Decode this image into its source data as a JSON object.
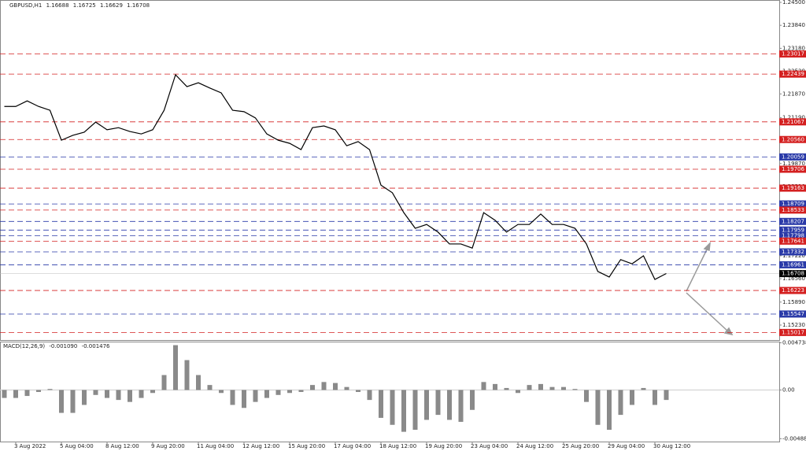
{
  "chart_data": [
    {
      "type": "line",
      "title": "GBPUSD,H1",
      "ohlc": [
        1.16688,
        1.16725,
        1.16629,
        1.16708
      ],
      "color": "#000000",
      "categories": [
        null,
        "3 Aug 2022",
        null,
        null,
        null,
        "5 Aug 04:00",
        null,
        null,
        null,
        "8 Aug 12:00",
        null,
        null,
        null,
        "9 Aug 20:00",
        null,
        null,
        null,
        "11 Aug 04:00",
        null,
        null,
        null,
        "12 Aug 12:00",
        null,
        null,
        null,
        "15 Aug 20:00",
        null,
        null,
        null,
        "17 Aug 04:00",
        null,
        null,
        null,
        "18 Aug 12:00",
        null,
        null,
        null,
        "19 Aug 20:00",
        null,
        null,
        null,
        "23 Aug 04:00",
        null,
        null,
        null,
        "24 Aug 12:00",
        null,
        null,
        null,
        "25 Aug 20:00",
        null,
        null,
        null,
        "29 Aug 04:00",
        null,
        null,
        null,
        "30 Aug 12:00",
        null
      ],
      "values": [
        1.2151,
        1.2151,
        1.2167,
        1.2151,
        1.214,
        1.2054,
        1.2068,
        1.2077,
        1.2106,
        1.2084,
        1.209,
        1.2079,
        1.2072,
        1.2084,
        1.214,
        1.2242,
        1.2208,
        1.2219,
        1.2204,
        1.219,
        1.214,
        1.2136,
        1.2118,
        1.2072,
        1.2054,
        1.2045,
        1.2027,
        1.209,
        1.2095,
        1.2084,
        1.2038,
        1.205,
        1.2027,
        1.1925,
        1.1903,
        1.1846,
        1.1801,
        1.1812,
        1.179,
        1.1756,
        1.1756,
        1.1744,
        1.1846,
        1.1824,
        1.179,
        1.1812,
        1.1812,
        1.1842,
        1.1812,
        1.1812,
        1.1801,
        1.1756,
        1.1677,
        1.1661,
        1.1711,
        1.1699,
        1.1722,
        1.1654,
        1.1671
      ],
      "ylim": [
        1.148,
        1.245
      ],
      "yticks": [
        {
          "value": 1.245,
          "label": "1.24500"
        },
        {
          "value": 1.2384,
          "label": "1.23840"
        },
        {
          "value": 1.2318,
          "label": "1.23180"
        },
        {
          "value": 1.2252,
          "label": "1.22520"
        },
        {
          "value": 1.2187,
          "label": "1.21870"
        },
        {
          "value": 1.2119,
          "label": "1.21190"
        },
        {
          "value": 1.2053,
          "label": "1.20530"
        },
        {
          "value": 1.1987,
          "label": "1.19870"
        },
        {
          "value": 1.1921,
          "label": "1.19210"
        },
        {
          "value": 1.1854,
          "label": "1.18540"
        },
        {
          "value": 1.1788,
          "label": "1.17880"
        },
        {
          "value": 1.1722,
          "label": "1.17220"
        },
        {
          "value": 1.1656,
          "label": "1.16560"
        },
        {
          "value": 1.1589,
          "label": "1.15890"
        },
        {
          "value": 1.1523,
          "label": "1.15230"
        }
      ],
      "levels": [
        {
          "value": 1.23017,
          "color": "#d42020"
        },
        {
          "value": 1.22439,
          "color": "#d42020"
        },
        {
          "value": 1.21067,
          "color": "#d42020"
        },
        {
          "value": 1.2056,
          "label": "1.20560",
          "color": "#d42020"
        },
        {
          "value": 1.20059,
          "color": "#2a3aa8"
        },
        {
          "value": 1.19706,
          "color": "#d42020"
        },
        {
          "value": 1.19163,
          "color": "#d42020"
        },
        {
          "value": 1.18709,
          "color": "#2a3aa8"
        },
        {
          "value": 1.18533,
          "color": "#d42020"
        },
        {
          "value": 1.18207,
          "color": "#2a3aa8"
        },
        {
          "value": 1.17959,
          "color": "#2a3aa8"
        },
        {
          "value": 1.17798,
          "color": "#2a3aa8"
        },
        {
          "value": 1.17641,
          "color": "#d42020"
        },
        {
          "value": 1.17332,
          "color": "#2a3aa8"
        },
        {
          "value": 1.16961,
          "color": "#2a3aa8"
        },
        {
          "value": 1.16223,
          "color": "#d42020"
        },
        {
          "value": 1.15547,
          "color": "#2a3aa8"
        },
        {
          "value": 1.15017,
          "color": "#d42020"
        }
      ]
    },
    {
      "type": "bar",
      "title": "MACD(12,26,9)",
      "indicator_values": [
        {
          "value": -0.00109,
          "label": "-0.001090"
        },
        -0.001476
      ],
      "color": "#8a8a8a",
      "values": [
        -0.0008,
        -0.0008,
        -0.0006,
        -0.0002,
        0.0001,
        -0.0023,
        -0.0023,
        -0.0015,
        -0.0005,
        -0.0008,
        -0.001,
        -0.0012,
        -0.0008,
        -0.0003,
        0.0015,
        0.0045,
        0.003,
        0.0015,
        0.0005,
        -0.0003,
        -0.0015,
        -0.0018,
        -0.0012,
        -0.0008,
        -0.0005,
        -0.0003,
        -0.0002,
        0.0005,
        0.0008,
        0.0007,
        0.0003,
        -0.0002,
        -0.001,
        -0.0028,
        -0.0035,
        -0.0042,
        -0.004,
        -0.003,
        -0.0025,
        -0.003,
        -0.0032,
        -0.002,
        0.0008,
        0.0006,
        0.0002,
        -0.0003,
        0.0005,
        0.0006,
        0.0003,
        0.0003,
        0.0001,
        -0.0012,
        -0.0035,
        -0.004,
        -0.0025,
        -0.0015,
        0.0002,
        -0.0015,
        -0.001
      ],
      "ylim": [
        -0.0051,
        0.0047
      ],
      "yticks": [
        0.004738,
        {
          "value": 0,
          "label": "0.00"
        },
        -0.004889
      ]
    }
  ]
}
